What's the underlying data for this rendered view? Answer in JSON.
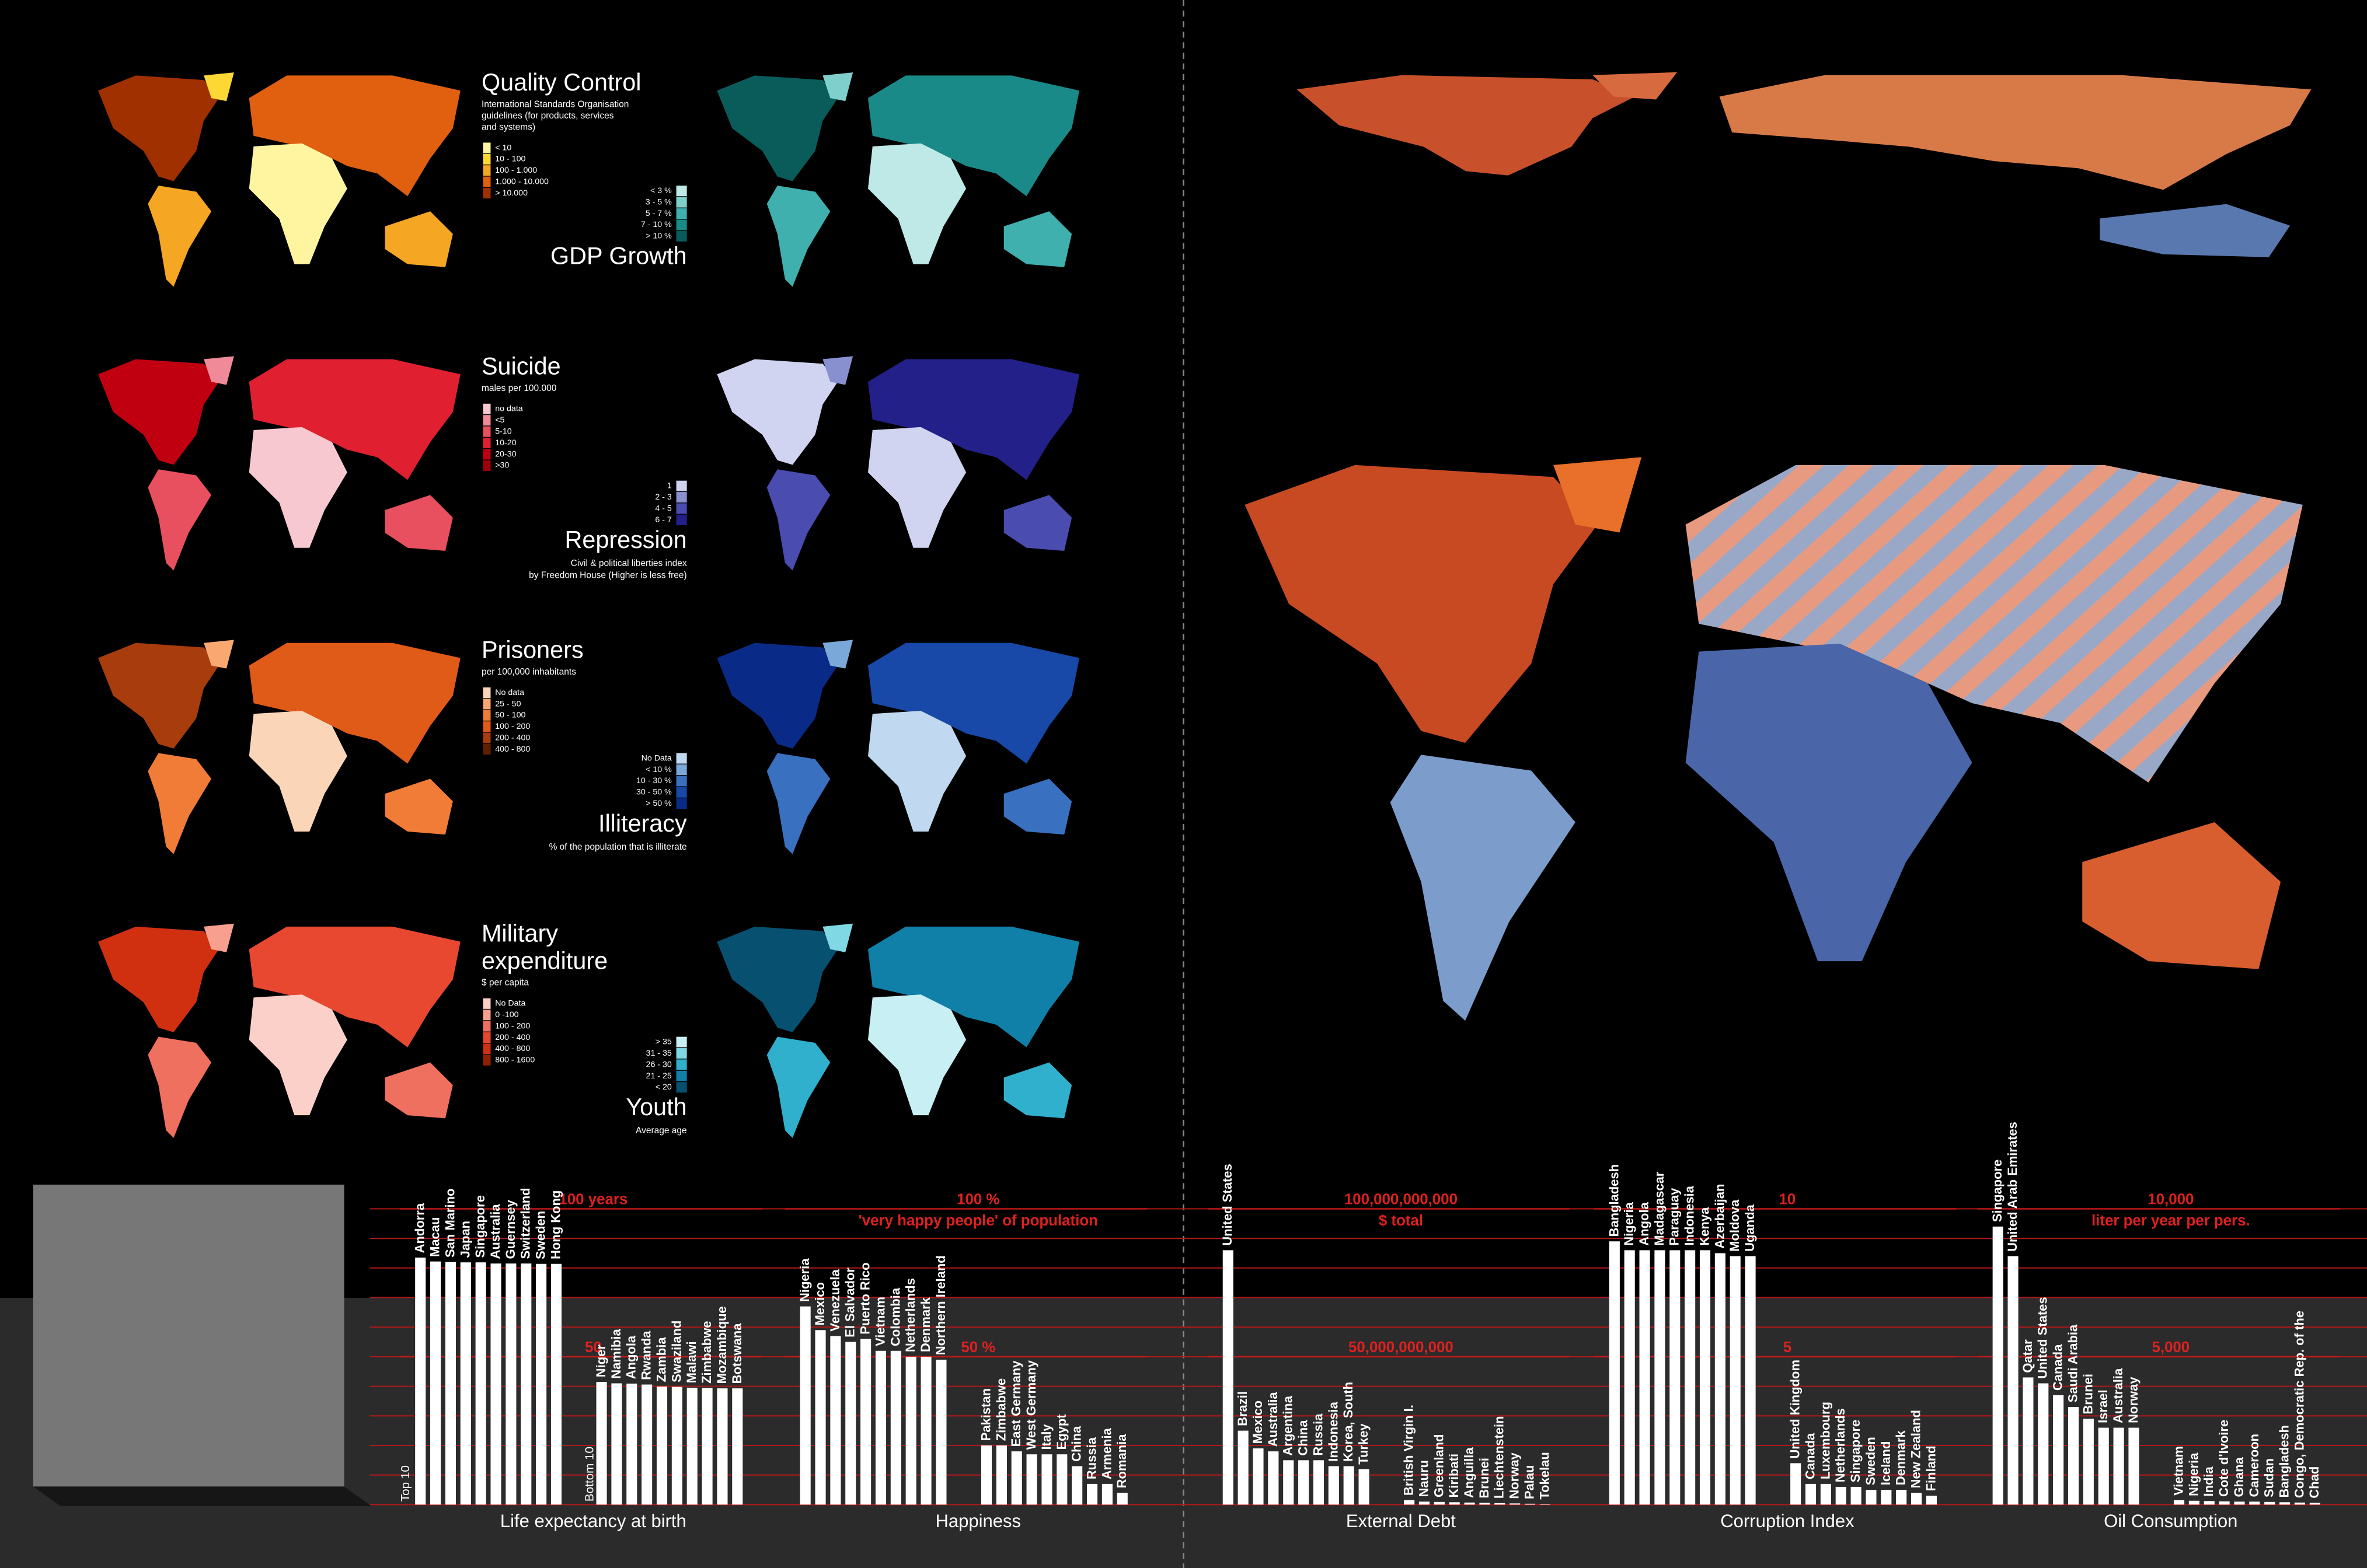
{
  "maps": [
    {
      "title": [
        "Quality Control"
      ],
      "subtitle": [
        "International Standards Organisation",
        "guidelines (for products, services",
        "and systems)"
      ],
      "legend": [
        "< 10",
        "10 - 100",
        "100 - 1.000",
        "1.000 - 10.000",
        "> 10.000"
      ],
      "colors": [
        "#fff5a0",
        "#fdd835",
        "#f5a623",
        "#e06010",
        "#a03000"
      ]
    },
    {
      "title": [
        "GDP Growth"
      ],
      "subtitle": [],
      "legend": [
        "< 3 %",
        "3 - 5 %",
        "5 - 7 %",
        "7 - 10 %",
        "> 10 %"
      ],
      "colors": [
        "#bfe9e6",
        "#7fd0cc",
        "#3fb0ad",
        "#1a8a88",
        "#0a5c5a"
      ]
    },
    {
      "title": [
        "Suicide"
      ],
      "subtitle": [
        "males per 100.000"
      ],
      "legend": [
        "no data",
        "<5",
        "5-10",
        "10-20",
        "20-30",
        ">30"
      ],
      "colors": [
        "#f7c8d0",
        "#f08a98",
        "#e85060",
        "#e02030",
        "#c00010",
        "#a00008"
      ]
    },
    {
      "title": [
        "Repression"
      ],
      "subtitle": [
        "Civil & political liberties index",
        "by Freedom House (Higher is less free)"
      ],
      "legend": [
        "1",
        "2 - 3",
        "4 - 5",
        "6 - 7"
      ],
      "colors": [
        "#d0d4f0",
        "#8890d0",
        "#4a4cb0",
        "#24208a"
      ]
    },
    {
      "title": [
        "Prisoners"
      ],
      "subtitle": [
        "per 100,000 inhabitants"
      ],
      "legend": [
        "No data",
        "25 - 50",
        "50 - 100",
        "100 - 200",
        "200 - 400",
        "400 - 800"
      ],
      "colors": [
        "#fbd5b8",
        "#f8a870",
        "#f07c38",
        "#e05a18",
        "#a83c0c",
        "#602000"
      ]
    },
    {
      "title": [
        "Illiteracy"
      ],
      "subtitle": [
        "% of the population that is illiterate"
      ],
      "legend": [
        "No Data",
        "< 10 %",
        "10 - 30 %",
        "30 - 50 %",
        "> 50 %"
      ],
      "colors": [
        "#c0d8f0",
        "#7aa8d8",
        "#3a70c0",
        "#1848a8",
        "#0a2a88"
      ]
    },
    {
      "title": [
        "Military",
        "expenditure"
      ],
      "subtitle": [
        "$ per capita"
      ],
      "legend": [
        "No Data",
        "0 -100",
        "100 - 200",
        "200 - 400",
        "400 - 800",
        "800 - 1600"
      ],
      "colors": [
        "#fbd0c8",
        "#f8a090",
        "#f07060",
        "#e84830",
        "#d03010",
        "#902000"
      ]
    },
    {
      "title": [
        "Youth"
      ],
      "subtitle": [
        "Average age"
      ],
      "legend": [
        "> 35",
        "31 - 35",
        "26 - 30",
        "21 - 25",
        "< 20"
      ],
      "colors": [
        "#c8f0f4",
        "#7fd8e4",
        "#30b0cc",
        "#1080a8",
        "#085070"
      ]
    }
  ],
  "chart_data": [
    {
      "type": "bar",
      "title": "Life expectancy at birth",
      "group_labels": [
        "Top 10",
        "Bottom 10"
      ],
      "color": "#ffffff",
      "categories": [
        "Andorra",
        "Macau",
        "San Marino",
        "Japan",
        "Singapore",
        "Australia",
        "Guernsey",
        "Switzerland",
        "Sweden",
        "Hong Kong",
        "Niger",
        "Namibia",
        "Angola",
        "Rwanda",
        "Zambia",
        "Swaziland",
        "Malawi",
        "Zimbabwe",
        "Mozambique",
        "Botswana"
      ],
      "values": [
        83.5,
        82.2,
        82.0,
        81.9,
        81.9,
        81.5,
        81.5,
        81.5,
        81.4,
        81.4,
        41.5,
        41.0,
        40.9,
        40.6,
        39.9,
        39.8,
        39.5,
        39.4,
        39.3,
        39.3
      ],
      "ylim": [
        0,
        100
      ],
      "yticks": [
        {
          "value": 100,
          "label": "100 years"
        },
        50
      ]
    },
    {
      "type": "bar",
      "title": "Happiness",
      "unit_label": "'very happy people' of population",
      "color": "#ffffff",
      "categories": [
        "Nigeria",
        "Mexico",
        "Venezuela",
        "El Salvador",
        "Puerto Rico",
        "Vietnam",
        "Colombia",
        "Netherlands",
        "Denmark",
        "Northern Ireland",
        "Pakistan",
        "Zimbabwe",
        "East Germany",
        "West Germany",
        "Italy",
        "Egypt",
        "China",
        "Russia",
        "Armenia",
        "Romania"
      ],
      "values": [
        67,
        59,
        57,
        55,
        56,
        52,
        52,
        50,
        50,
        49,
        20,
        20,
        18,
        17,
        17,
        17,
        13,
        7,
        7,
        4
      ],
      "ylim": [
        0,
        100
      ],
      "yticks": [
        {
          "value": 100,
          "label": "100 %"
        },
        {
          "value": 50,
          "label": "50 %"
        }
      ]
    },
    {
      "type": "bar",
      "title": "External Debt",
      "unit_label": "$ total",
      "color": "#ffffff",
      "categories": [
        "United States",
        "Brazil",
        "Mexico",
        "Australia",
        "Argentina",
        "China",
        "Russia",
        "Indonesia",
        "Korea, South",
        "Turkey",
        "British Virgin I.",
        "Nauru",
        "Greenland",
        "Kiribati",
        "Anguilla",
        "Brunei",
        "Liechtenstein",
        "Norway",
        "Palau",
        "Tokelau"
      ],
      "values": [
        86000000000,
        25000000000,
        19000000000,
        18000000000,
        15000000000,
        15000000000,
        15000000000,
        13000000000,
        13000000000,
        12000000000,
        1500000000,
        1000000000,
        900000000,
        800000000,
        700000000,
        600000000,
        500000000,
        400000000,
        300000000,
        200000000
      ],
      "ylim": [
        0,
        100000000000
      ],
      "yticks": [
        {
          "value": 100000000000,
          "label": "100,000,000,000"
        },
        {
          "value": 50000000000,
          "label": "50,000,000,000"
        }
      ]
    },
    {
      "type": "bar",
      "title": "Corruption Index",
      "color": "#ffffff",
      "categories": [
        "Bangladesh",
        "Nigeria",
        "Angola",
        "Madagascar",
        "Paraguay",
        "Indonesia",
        "Kenya",
        "Azerbaijan",
        "Moldova",
        "Uganda",
        "United Kingdom",
        "Canada",
        "Luxembourg",
        "Netherlands",
        "Singapore",
        "Sweden",
        "Iceland",
        "Denmark",
        "New Zealand",
        "Finland"
      ],
      "values": [
        8.9,
        8.6,
        8.6,
        8.6,
        8.6,
        8.6,
        8.6,
        8.5,
        8.4,
        8.4,
        1.4,
        0.7,
        0.7,
        0.6,
        0.6,
        0.5,
        0.5,
        0.5,
        0.4,
        0.3
      ],
      "ylim": [
        0,
        10
      ],
      "yticks": [
        10,
        5
      ]
    },
    {
      "type": "bar",
      "title": "Oil Consumption",
      "unit_label": "liter per year per pers.",
      "color": "#ffffff",
      "categories": [
        "Singapore",
        "United Arab Emirates",
        "Qatar",
        "United States",
        "Canada",
        "Saudi Arabia",
        "Brunei",
        "Israel",
        "Australia",
        "Norway",
        "Vietnam",
        "Nigeria",
        "India",
        "Cote d'Ivoire",
        "Ghana",
        "Cameroon",
        "Sudan",
        "Bangladesh",
        "Congo, Democratic Rep. of the",
        "Chad"
      ],
      "values": [
        9400,
        8400,
        4300,
        4100,
        3700,
        3300,
        2900,
        2600,
        2600,
        2600,
        150,
        130,
        120,
        110,
        100,
        100,
        90,
        80,
        70,
        60
      ],
      "ylim": [
        0,
        10000
      ],
      "yticks": [
        {
          "value": 10000,
          "label": "10,000"
        },
        {
          "value": 5000,
          "label": "5,000"
        }
      ]
    }
  ]
}
